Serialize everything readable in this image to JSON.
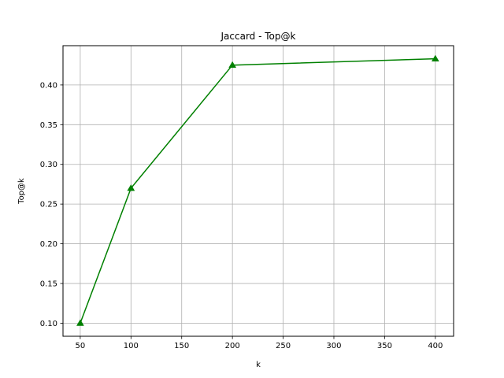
{
  "chart_data": {
    "type": "line",
    "title": "Jaccard - Top@k",
    "xlabel": "k",
    "ylabel": "Top@k",
    "xlim": [
      33,
      418
    ],
    "ylim": [
      0.0835,
      0.4495
    ],
    "xticks": [
      50,
      100,
      150,
      200,
      250,
      300,
      350,
      400
    ],
    "yticks": [
      0.1,
      0.15,
      0.2,
      0.25,
      0.3,
      0.35,
      0.4
    ],
    "xtick_labels": [
      "50",
      "100",
      "150",
      "200",
      "250",
      "300",
      "350",
      "400"
    ],
    "ytick_labels": [
      "0.10",
      "0.15",
      "0.20",
      "0.25",
      "0.30",
      "0.35",
      "0.40"
    ],
    "grid": true,
    "marker": "triangle-up",
    "color": "#008000",
    "series": [
      {
        "x": [
          50,
          100,
          200,
          400
        ],
        "values": [
          0.1,
          0.27,
          0.425,
          0.433
        ]
      }
    ]
  }
}
